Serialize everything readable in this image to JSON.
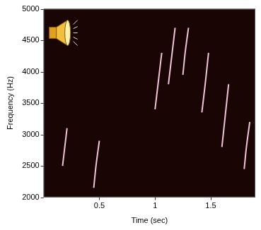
{
  "chart_data": {
    "type": "line",
    "x_label": "Time (sec)",
    "y_label": "Frequency (Hz)",
    "color": "#f0c4da",
    "line_style": "solid",
    "marker": "none",
    "grid": false,
    "xlim": [
      0,
      1.9
    ],
    "xticks": [
      0.5,
      1,
      1.5
    ],
    "ylim": [
      2000,
      5000
    ],
    "yticks": [
      2000,
      2500,
      3000,
      3500,
      4000,
      4500,
      5000
    ],
    "series": [
      {
        "x": [
          0.17,
          0.19,
          0.21
        ],
        "values": [
          2500,
          2800,
          3100
        ]
      },
      {
        "x": [
          0.45,
          0.47,
          0.5
        ],
        "values": [
          2150,
          2500,
          2900
        ]
      },
      {
        "x": [
          1.0,
          1.03,
          1.06
        ],
        "values": [
          3400,
          3850,
          4300
        ]
      },
      {
        "x": [
          1.12,
          1.15,
          1.18
        ],
        "values": [
          3800,
          4250,
          4700
        ]
      },
      {
        "x": [
          1.25,
          1.27,
          1.3
        ],
        "values": [
          3950,
          4300,
          4700
        ]
      },
      {
        "x": [
          1.42,
          1.45,
          1.48
        ],
        "values": [
          3350,
          3800,
          4300
        ]
      },
      {
        "x": [
          1.6,
          1.63,
          1.66
        ],
        "values": [
          2800,
          3300,
          3800
        ]
      },
      {
        "x": [
          1.8,
          1.82,
          1.85
        ],
        "values": [
          2450,
          2800,
          3200
        ]
      }
    ]
  }
}
